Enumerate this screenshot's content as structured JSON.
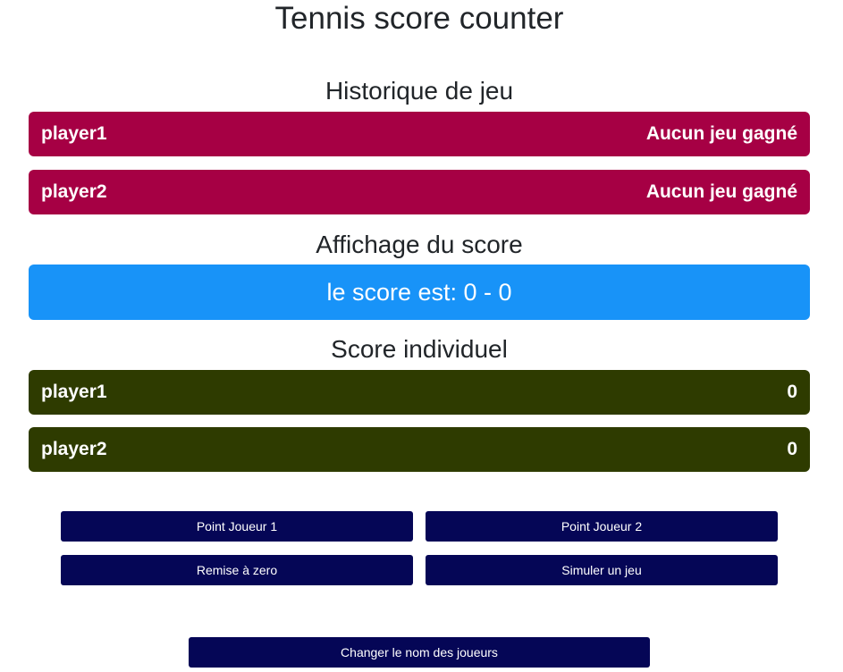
{
  "title": "Tennis score counter",
  "history": {
    "heading": "Historique de jeu",
    "rows": [
      {
        "player": "player1",
        "status": "Aucun jeu gagné"
      },
      {
        "player": "player2",
        "status": "Aucun jeu gagné"
      }
    ]
  },
  "score_display": {
    "heading": "Affichage du score",
    "text": "le score est: 0 - 0"
  },
  "individual": {
    "heading": "Score individuel",
    "rows": [
      {
        "player": "player1",
        "score": "0"
      },
      {
        "player": "player2",
        "score": "0"
      }
    ]
  },
  "buttons": {
    "point_player1": "Point Joueur 1",
    "point_player2": "Point Joueur 2",
    "reset": "Remise à zero",
    "simulate": "Simuler un jeu",
    "rename": "Changer le nom des joueurs"
  },
  "colors": {
    "history_bar": "#a60044",
    "score_box": "#1893f8",
    "individual_bar": "#2e3b00",
    "button": "#050656"
  }
}
